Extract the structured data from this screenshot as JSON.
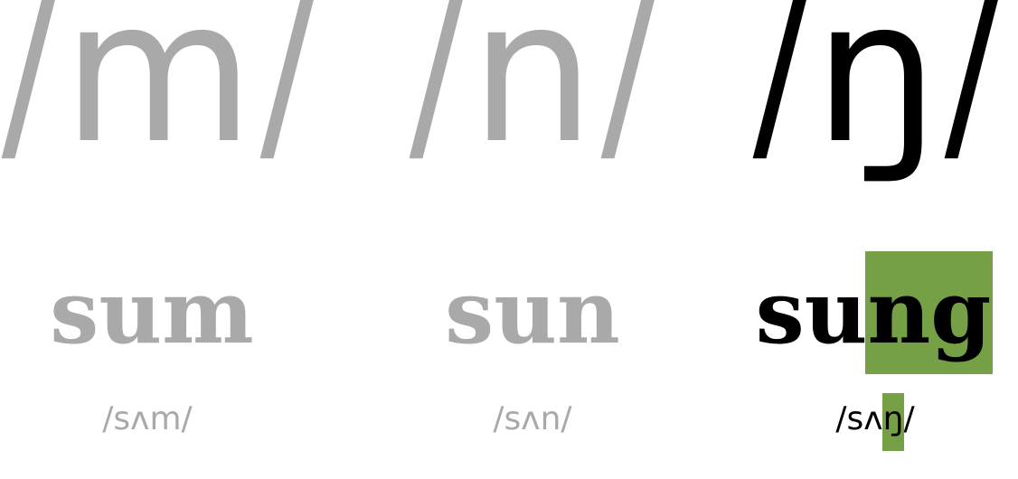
{
  "colors": {
    "muted": "#a9a9a9",
    "active": "#000000",
    "highlight": "#76a045",
    "background": "#ffffff"
  },
  "columns": [
    {
      "phoneme": {
        "open": "/",
        "symbol": "m",
        "close": "/"
      },
      "word": {
        "prefix": "sum",
        "highlight": "",
        "suffix": ""
      },
      "ipa": {
        "prefix": "/sʌm/",
        "highlight": "",
        "suffix": ""
      },
      "state": "muted"
    },
    {
      "phoneme": {
        "open": "/",
        "symbol": "n",
        "close": "/"
      },
      "word": {
        "prefix": "sun",
        "highlight": "",
        "suffix": ""
      },
      "ipa": {
        "prefix": "/sʌn/",
        "highlight": "",
        "suffix": ""
      },
      "state": "muted"
    },
    {
      "phoneme": {
        "open": "/",
        "symbol": "ŋ",
        "close": "/"
      },
      "word": {
        "prefix": "su",
        "highlight": "ng",
        "suffix": ""
      },
      "ipa": {
        "prefix": "/sʌ",
        "highlight": "ŋ",
        "suffix": "/"
      },
      "state": "active"
    }
  ]
}
